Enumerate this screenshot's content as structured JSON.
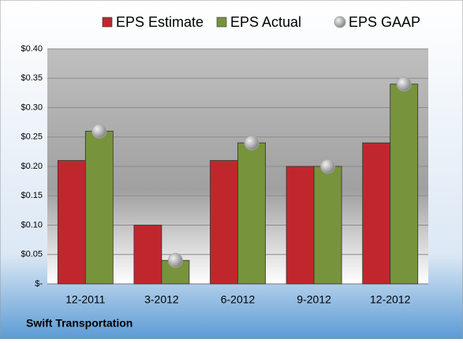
{
  "chart_data": {
    "type": "bar",
    "footer": "Swift Transportation",
    "categories": [
      "12-2011",
      "3-2012",
      "6-2012",
      "9-2012",
      "12-2012"
    ],
    "series": [
      {
        "name": "EPS Estimate",
        "color": "#c0272d",
        "mark": "bar",
        "values": [
          0.21,
          0.1,
          0.21,
          0.2,
          0.24
        ]
      },
      {
        "name": "EPS Actual",
        "color": "#77933c",
        "mark": "bar",
        "values": [
          0.26,
          0.04,
          0.24,
          0.2,
          0.34
        ]
      },
      {
        "name": "EPS GAAP",
        "color": "#a6a6a6",
        "mark": "circle",
        "values": [
          0.26,
          0.04,
          0.24,
          0.2,
          0.34
        ]
      }
    ],
    "ylim": [
      0,
      0.4
    ],
    "yticks": [
      {
        "value": 0,
        "label": "$-"
      },
      {
        "value": 0.05,
        "label": "$0.05"
      },
      {
        "value": 0.1,
        "label": "$0.10"
      },
      {
        "value": 0.15,
        "label": "$0.15"
      },
      {
        "value": 0.2,
        "label": "$0.20"
      },
      {
        "value": 0.25,
        "label": "$0.25"
      },
      {
        "value": 0.3,
        "label": "$0.30"
      },
      {
        "value": 0.35,
        "label": "$0.35"
      },
      {
        "value": 0.4,
        "label": "$0.40"
      }
    ],
    "grid": true
  }
}
